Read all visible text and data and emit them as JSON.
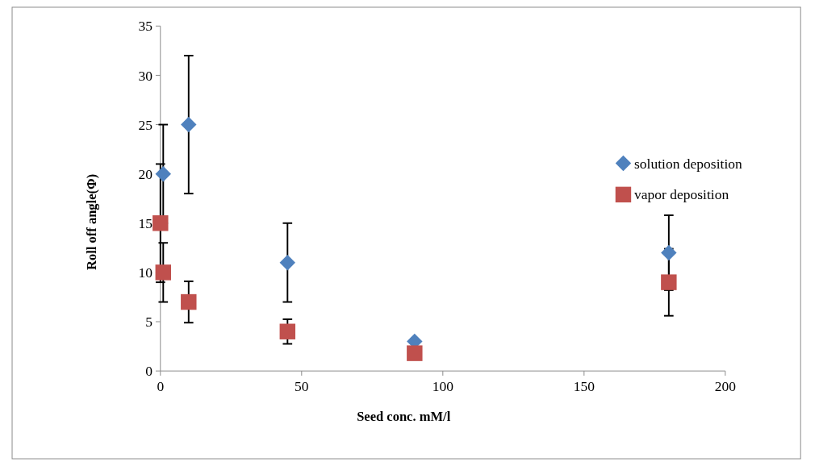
{
  "chart_data": {
    "type": "scatter",
    "xlabel": "Seed conc. mM/l",
    "ylabel": "Roll off angle(Φ)",
    "xlim": [
      0,
      200
    ],
    "xticks": [
      0,
      50,
      100,
      150,
      200
    ],
    "ylim": [
      0,
      35
    ],
    "yticks": [
      0,
      5,
      10,
      15,
      20,
      25,
      30,
      35
    ],
    "grid": false,
    "legend": "right",
    "series": [
      {
        "name": "solution deposition",
        "color": "#4f81bd",
        "marker": "diamond",
        "x": [
          1,
          10,
          45,
          90,
          180
        ],
        "values": [
          20,
          25,
          11,
          3,
          12
        ],
        "errors": [
          5,
          7,
          4,
          null,
          3.8
        ]
      },
      {
        "name": "vapor deposition",
        "color": "#c0504d",
        "marker": "square",
        "x": [
          0,
          1,
          10,
          45,
          90,
          180
        ],
        "values": [
          15,
          10,
          7,
          4,
          1.8,
          9
        ],
        "errors": [
          6,
          3,
          2.1,
          1.25,
          null,
          3.4
        ]
      }
    ]
  }
}
